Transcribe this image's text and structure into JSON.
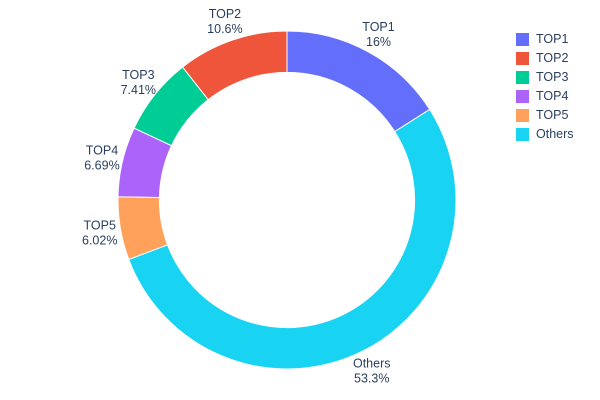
{
  "chart_data": {
    "type": "pie",
    "subtype": "donut",
    "title": "",
    "hole_ratio": 0.755,
    "labels": [
      "TOP1",
      "TOP2",
      "TOP3",
      "TOP4",
      "TOP5",
      "Others"
    ],
    "values": [
      16,
      10.6,
      7.41,
      6.69,
      6.02,
      53.3
    ],
    "percent_labels": [
      "16%",
      "10.6%",
      "7.41%",
      "6.69%",
      "6.02%",
      "53.3%"
    ],
    "colors": [
      "#636EFA",
      "#EF553B",
      "#00CC96",
      "#AB63FA",
      "#FFA15A",
      "#19D3F3"
    ],
    "clockwise_order_from_top": [
      0,
      5,
      4,
      3,
      2,
      1
    ],
    "legend": {
      "position": "top-right",
      "items": [
        "TOP1",
        "TOP2",
        "TOP3",
        "TOP4",
        "TOP5",
        "Others"
      ]
    },
    "text_color": "#2a3f5f",
    "background_color": "#ffffff"
  }
}
